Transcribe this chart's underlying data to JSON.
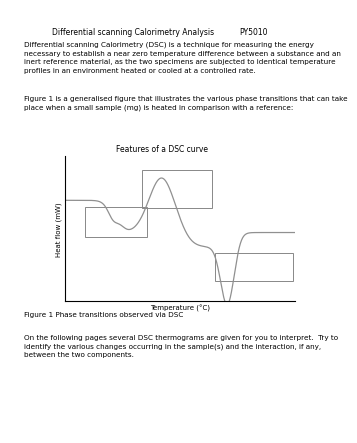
{
  "header_left": "Differential scanning Calorimetry Analysis",
  "header_right": "PY5010",
  "para1": "Differential scanning Calorimetry (DSC) is a technique for measuring the energy\nnecessary to establish a near zero temperature difference between a substance and an\ninert reference material, as the two specimens are subjected to identical temperature\nprofiles in an environment heated or cooled at a controlled rate.",
  "para2": "Figure 1 is a generalised figure that illustrates the various phase transitions that can take\nplace when a small sample (mg) is heated in comparison with a reference:",
  "fig_title": "Features of a DSC curve",
  "xlabel": "Temperature (°C)",
  "ylabel": "Heat flow (mW)",
  "fig_caption": "Figure 1 Phase transitions observed via DSC",
  "para3": "On the following pages several DSC thermograms are given for you to interpret.  Try to\nidentify the various changes occurring in the sample(s) and the interaction, if any,\nbetween the two components.",
  "bg_color": "#ffffff",
  "text_color": "#000000",
  "curve_color": "#909090",
  "font_size_header": 5.5,
  "font_size_body": 5.2,
  "font_size_fig_title": 5.5,
  "font_size_axis_label": 5.0,
  "font_size_caption": 5.2
}
